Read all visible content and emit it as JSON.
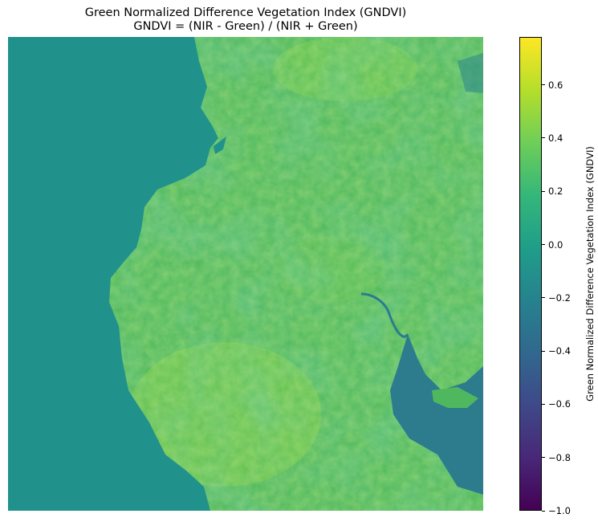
{
  "title": {
    "line1": "Green Normalized Difference Vegetation Index (GNDVI)",
    "line2": "GNDVI = (NIR - Green) / (NIR + Green)"
  },
  "colorbar": {
    "label": "Green Normalized Difference Vegetation Index (GNDVI)",
    "colormap": "viridis",
    "min": -1.0,
    "max": 0.78,
    "ticks": [
      {
        "value": 0.6,
        "label": "0.6"
      },
      {
        "value": 0.4,
        "label": "0.4"
      },
      {
        "value": 0.2,
        "label": "0.2"
      },
      {
        "value": 0.0,
        "label": "0.0"
      },
      {
        "value": -0.2,
        "label": "−0.2"
      },
      {
        "value": -0.4,
        "label": "−0.4"
      },
      {
        "value": -0.6,
        "label": "−0.6"
      },
      {
        "value": -0.8,
        "label": "−0.8"
      },
      {
        "value": -1.0,
        "label": "−1.0"
      }
    ],
    "stops": [
      "#440154",
      "#482878",
      "#3e4989",
      "#31688e",
      "#26828e",
      "#1f9e89",
      "#35b779",
      "#6ece58",
      "#b5de2b",
      "#fde725"
    ]
  },
  "map": {
    "colors": {
      "water": "#21918c",
      "land": "#4fb85f",
      "land_bright": "#7ccf44",
      "inland_water": "#2c7c8e"
    }
  }
}
